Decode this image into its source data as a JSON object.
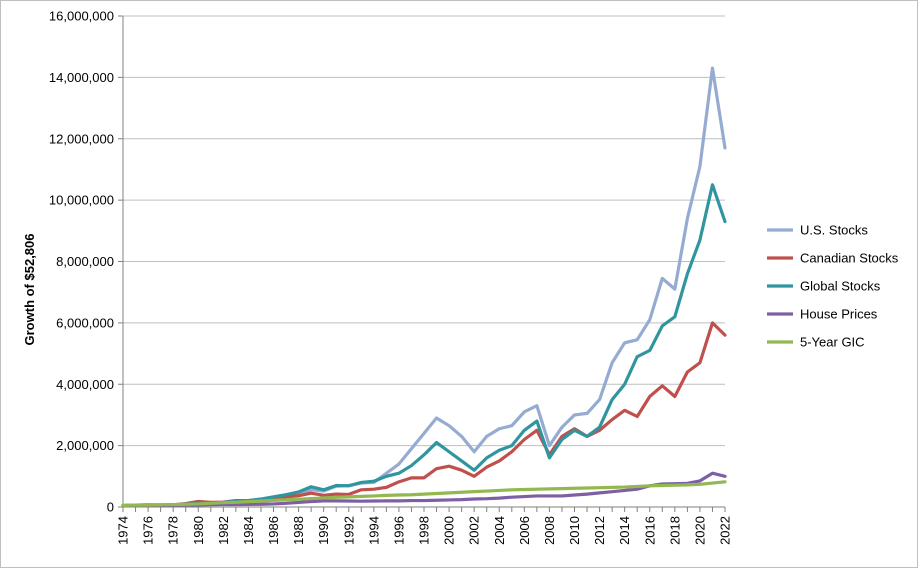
{
  "chart_data": {
    "type": "line",
    "ylabel": "Growth of $52,806",
    "xlabel": "",
    "title": "",
    "ylim": [
      0,
      16000000
    ],
    "yticks": [
      0,
      2000000,
      4000000,
      6000000,
      8000000,
      10000000,
      12000000,
      14000000,
      16000000
    ],
    "ytick_labels": [
      "0",
      "2,000,000",
      "4,000,000",
      "6,000,000",
      "8,000,000",
      "10,000,000",
      "12,000,000",
      "14,000,000",
      "16,000,000"
    ],
    "xlim": [
      1974,
      2022
    ],
    "xtick_labels": [
      "1974",
      "1976",
      "1978",
      "1980",
      "1982",
      "1984",
      "1986",
      "1988",
      "1990",
      "1992",
      "1994",
      "1996",
      "1998",
      "2000",
      "2002",
      "2004",
      "2006",
      "2008",
      "2010",
      "2012",
      "2014",
      "2016",
      "2018",
      "2020",
      "2022"
    ],
    "grid": "horizontal-major",
    "legend_position": "right",
    "x": [
      1974,
      1975,
      1976,
      1977,
      1978,
      1979,
      1980,
      1981,
      1982,
      1983,
      1984,
      1985,
      1986,
      1987,
      1988,
      1989,
      1990,
      1991,
      1992,
      1993,
      1994,
      1995,
      1996,
      1997,
      1998,
      1999,
      2000,
      2001,
      2002,
      2003,
      2004,
      2005,
      2006,
      2007,
      2008,
      2009,
      2010,
      2011,
      2012,
      2013,
      2014,
      2015,
      2016,
      2017,
      2018,
      2019,
      2020,
      2021,
      2022
    ],
    "series": [
      {
        "name": "U.S. Stocks",
        "color": "#95abd2",
        "values": [
          40000,
          60000,
          70000,
          65000,
          70000,
          80000,
          100000,
          100000,
          120000,
          160000,
          180000,
          240000,
          300000,
          360000,
          420000,
          560000,
          520000,
          680000,
          700000,
          780000,
          800000,
          1100000,
          1400000,
          1900000,
          2400000,
          2900000,
          2650000,
          2300000,
          1800000,
          2300000,
          2550000,
          2650000,
          3100000,
          3300000,
          2000000,
          2600000,
          3000000,
          3050000,
          3500000,
          4700000,
          5350000,
          5450000,
          6100000,
          7450000,
          7100000,
          9400000,
          11100000,
          14300000,
          11700000
        ]
      },
      {
        "name": "Canadian Stocks",
        "color": "#c0504d",
        "values": [
          45000,
          55000,
          60000,
          60000,
          70000,
          110000,
          180000,
          150000,
          160000,
          210000,
          210000,
          240000,
          280000,
          330000,
          370000,
          450000,
          380000,
          420000,
          410000,
          560000,
          580000,
          640000,
          820000,
          950000,
          950000,
          1250000,
          1330000,
          1200000,
          1000000,
          1300000,
          1500000,
          1800000,
          2200000,
          2500000,
          1700000,
          2300000,
          2550000,
          2300000,
          2500000,
          2850000,
          3150000,
          2950000,
          3600000,
          3950000,
          3600000,
          4400000,
          4700000,
          6000000,
          5600000
        ]
      },
      {
        "name": "Global Stocks",
        "color": "#31959f",
        "values": [
          40000,
          60000,
          70000,
          65000,
          70000,
          90000,
          120000,
          120000,
          150000,
          190000,
          210000,
          260000,
          330000,
          400000,
          490000,
          660000,
          560000,
          700000,
          690000,
          800000,
          840000,
          1000000,
          1100000,
          1350000,
          1700000,
          2100000,
          1800000,
          1500000,
          1200000,
          1600000,
          1850000,
          2000000,
          2500000,
          2800000,
          1600000,
          2200000,
          2500000,
          2300000,
          2600000,
          3500000,
          4000000,
          4900000,
          5100000,
          5900000,
          6200000,
          7600000,
          8700000,
          10500000,
          9300000
        ]
      },
      {
        "name": "House Prices",
        "color": "#7e5fa4",
        "values": [
          50000,
          55000,
          60000,
          62000,
          64000,
          67000,
          70000,
          75000,
          80000,
          82000,
          85000,
          90000,
          100000,
          120000,
          150000,
          180000,
          200000,
          200000,
          195000,
          190000,
          195000,
          200000,
          200000,
          210000,
          210000,
          220000,
          230000,
          240000,
          260000,
          270000,
          290000,
          320000,
          340000,
          360000,
          360000,
          360000,
          390000,
          420000,
          460000,
          500000,
          540000,
          580000,
          690000,
          750000,
          760000,
          770000,
          850000,
          1100000,
          1000000
        ]
      },
      {
        "name": "5-Year GIC",
        "color": "#92b84f",
        "values": [
          52806,
          60000,
          66000,
          72000,
          80000,
          88000,
          100000,
          120000,
          140000,
          155000,
          175000,
          195000,
          215000,
          235000,
          255000,
          275000,
          295000,
          315000,
          330000,
          345000,
          360000,
          380000,
          390000,
          400000,
          420000,
          440000,
          460000,
          480000,
          500000,
          520000,
          540000,
          560000,
          570000,
          580000,
          590000,
          600000,
          610000,
          620000,
          630000,
          640000,
          650000,
          670000,
          690000,
          700000,
          710000,
          720000,
          740000,
          780000,
          820000
        ]
      }
    ]
  }
}
